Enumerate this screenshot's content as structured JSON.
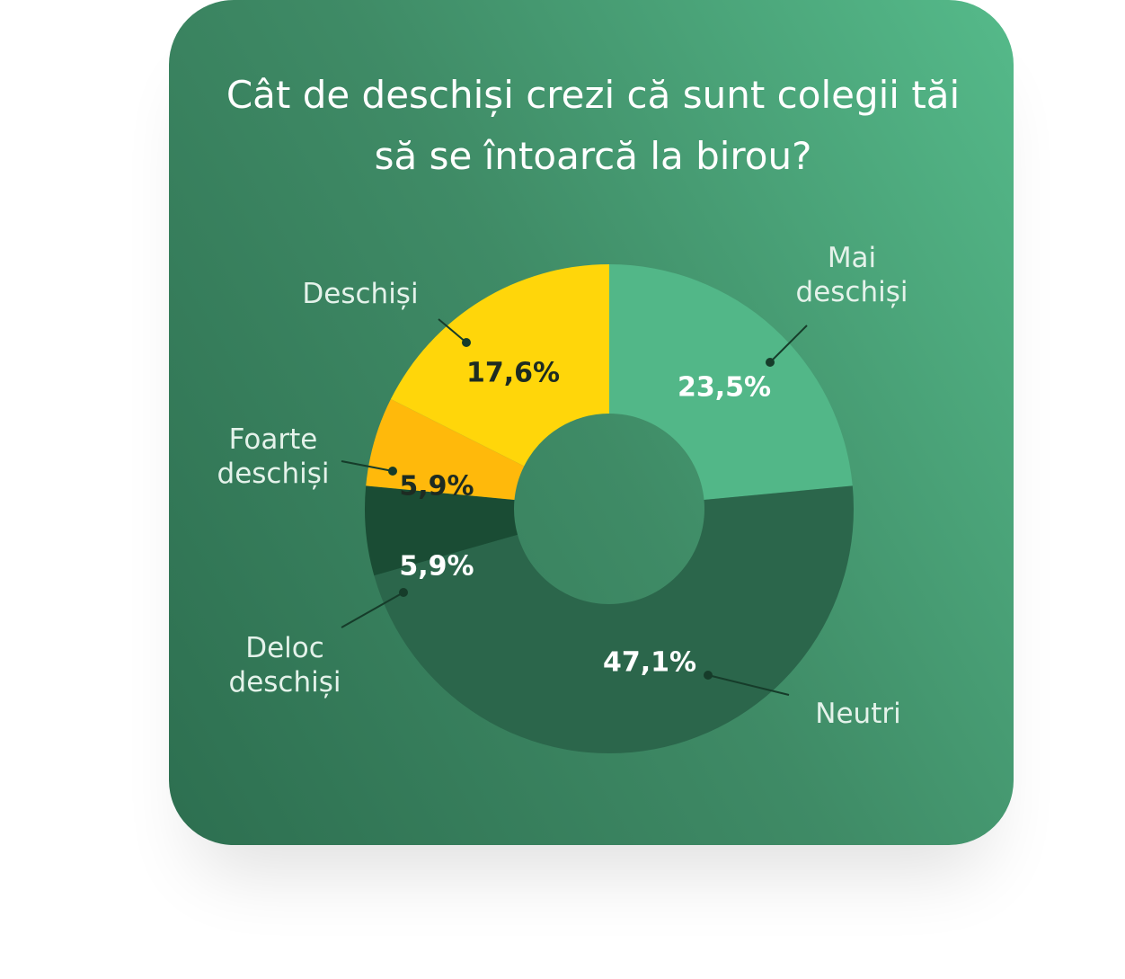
{
  "chart_data": {
    "type": "pie",
    "title": "Cât de deschiși crezi că sunt colegii tăi să se întoarcă la birou?",
    "categories": [
      "Mai deschiși",
      "Neutri",
      "Deloc deschiși",
      "Foarte deschiși",
      "Deschiși"
    ],
    "values": [
      23.5,
      47.1,
      5.9,
      5.9,
      17.6
    ],
    "value_labels": [
      "23,5%",
      "47,1%",
      "5,9%",
      "5,9%",
      "17,6%"
    ],
    "colors": [
      "#52b788",
      "#2b664b",
      "#1a4c34",
      "#ffb90b",
      "#ffd60a"
    ],
    "donut": true
  }
}
